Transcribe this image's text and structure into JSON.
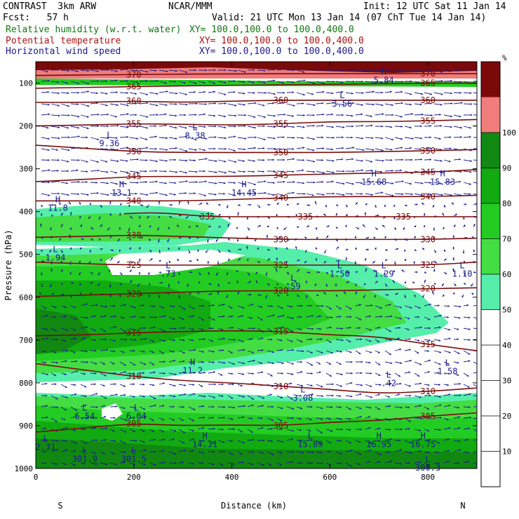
{
  "header": {
    "model": "CONTRAST  3km ARW",
    "fcst": "Fcst:   57 h",
    "org": "NCAR/MMM",
    "init": "Init: 12 UTC Sat 11 Jan 14",
    "valid": "Valid: 21 UTC Mon 13 Jan 14 (07 ChT Tue 14 Jan 14)",
    "fields": [
      {
        "name": "Relative humidity (w.r.t. water)",
        "xy": "XY= 100.0,100.0 to 100.0,400.0",
        "color": "#117711"
      },
      {
        "name": "Potential temperature",
        "xy": "XY= 100.0,100.0 to 100.0,400.0",
        "color": "#aa1111"
      },
      {
        "name": "Horizontal wind speed",
        "xy": "XY= 100.0,100.0 to 100.0,400.0",
        "color": "#1a1a8c"
      }
    ]
  },
  "chart_data": {
    "type": "contour-cross-section",
    "xlabel": "Distance (km)",
    "ylabel": "Pressure (hPa)",
    "xlim": [
      0,
      900
    ],
    "ylim": [
      1000,
      50
    ],
    "x_ticks": [
      "0",
      "200",
      "400",
      "600",
      "800"
    ],
    "y_ticks": [
      "100",
      "200",
      "300",
      "400",
      "500",
      "600",
      "700",
      "800",
      "900",
      "1000"
    ],
    "end_labels": {
      "left": "S",
      "right": "N"
    },
    "colorbar": {
      "unit": "%",
      "ticks": [
        "10",
        "20",
        "30",
        "40",
        "50",
        "60",
        "70",
        "80",
        "90",
        "100"
      ],
      "bins": [
        {
          "range": [
            50,
            60
          ],
          "color": "#55eeaa"
        },
        {
          "range": [
            60,
            70
          ],
          "color": "#44dd44"
        },
        {
          "range": [
            70,
            80
          ],
          "color": "#22cc22"
        },
        {
          "range": [
            80,
            90
          ],
          "color": "#11aa11"
        },
        {
          "range": [
            90,
            100
          ],
          "color": "#118811"
        },
        {
          "range": [
            100,
            110
          ],
          "color": "#f07c7c"
        },
        {
          "range": [
            110,
            120
          ],
          "color": "#7a0a0a"
        }
      ]
    },
    "theta_contours": [
      {
        "value": 305,
        "points": [
          [
            0,
            915
          ],
          [
            100,
            905
          ],
          [
            200,
            895
          ],
          [
            300,
            900
          ],
          [
            400,
            898
          ],
          [
            500,
            900
          ],
          [
            600,
            892
          ],
          [
            700,
            888
          ],
          [
            800,
            878
          ],
          [
            900,
            870
          ]
        ]
      },
      {
        "value": 310,
        "points": [
          [
            0,
            755
          ],
          [
            100,
            770
          ],
          [
            200,
            785
          ],
          [
            300,
            795
          ],
          [
            400,
            800
          ],
          [
            500,
            808
          ],
          [
            600,
            815
          ],
          [
            700,
            825
          ],
          [
            800,
            820
          ],
          [
            900,
            812
          ]
        ]
      },
      {
        "value": 315,
        "points": [
          [
            0,
            690
          ],
          [
            100,
            688
          ],
          [
            200,
            683
          ],
          [
            300,
            680
          ],
          [
            400,
            678
          ],
          [
            500,
            680
          ],
          [
            600,
            688
          ],
          [
            700,
            692
          ],
          [
            800,
            710
          ],
          [
            900,
            725
          ]
        ]
      },
      {
        "value": 320,
        "points": [
          [
            0,
            598
          ],
          [
            100,
            595
          ],
          [
            200,
            592
          ],
          [
            300,
            588
          ],
          [
            400,
            585
          ],
          [
            500,
            585
          ],
          [
            600,
            585
          ],
          [
            700,
            583
          ],
          [
            800,
            580
          ],
          [
            900,
            578
          ]
        ]
      },
      {
        "value": 325,
        "points": [
          [
            0,
            518
          ],
          [
            100,
            522
          ],
          [
            200,
            525
          ],
          [
            300,
            525
          ],
          [
            400,
            525
          ],
          [
            500,
            525
          ],
          [
            600,
            525
          ],
          [
            700,
            525
          ],
          [
            800,
            525
          ],
          [
            900,
            518
          ]
        ]
      },
      {
        "value": 330,
        "points": [
          [
            0,
            460
          ],
          [
            100,
            458
          ],
          [
            200,
            455
          ],
          [
            300,
            458
          ],
          [
            400,
            462
          ],
          [
            500,
            465
          ],
          [
            600,
            465
          ],
          [
            700,
            465
          ],
          [
            800,
            465
          ],
          [
            900,
            462
          ]
        ]
      },
      {
        "value": 335,
        "points": [
          [
            180,
            405
          ],
          [
            250,
            402
          ],
          [
            350,
            412
          ],
          [
            450,
            412
          ],
          [
            550,
            412
          ],
          [
            650,
            412
          ],
          [
            750,
            412
          ],
          [
            900,
            412
          ]
        ]
      },
      {
        "value": 340,
        "points": [
          [
            0,
            375
          ],
          [
            100,
            375
          ],
          [
            200,
            375
          ],
          [
            300,
            375
          ],
          [
            400,
            372
          ],
          [
            500,
            368
          ],
          [
            600,
            365
          ],
          [
            700,
            365
          ],
          [
            800,
            365
          ],
          [
            900,
            362
          ]
        ]
      },
      {
        "value": 345,
        "points": [
          [
            0,
            330
          ],
          [
            100,
            325
          ],
          [
            200,
            318
          ],
          [
            300,
            318
          ],
          [
            400,
            318
          ],
          [
            500,
            315
          ],
          [
            600,
            312
          ],
          [
            700,
            310
          ],
          [
            800,
            308
          ],
          [
            900,
            302
          ]
        ]
      },
      {
        "value": 350,
        "points": [
          [
            0,
            245
          ],
          [
            100,
            252
          ],
          [
            200,
            260
          ],
          [
            300,
            262
          ],
          [
            400,
            262
          ],
          [
            500,
            262
          ],
          [
            600,
            262
          ],
          [
            700,
            260
          ],
          [
            800,
            258
          ],
          [
            900,
            255
          ]
        ]
      },
      {
        "value": 355,
        "points": [
          [
            0,
            200
          ],
          [
            100,
            198
          ],
          [
            200,
            195
          ],
          [
            300,
            196
          ],
          [
            400,
            198
          ],
          [
            500,
            195
          ],
          [
            600,
            190
          ],
          [
            700,
            190
          ],
          [
            800,
            188
          ],
          [
            900,
            185
          ]
        ]
      },
      {
        "value": 360,
        "points": [
          [
            0,
            145
          ],
          [
            100,
            145
          ],
          [
            200,
            142
          ],
          [
            300,
            145
          ],
          [
            400,
            142
          ],
          [
            500,
            140
          ],
          [
            600,
            140
          ],
          [
            700,
            140
          ],
          [
            800,
            140
          ],
          [
            900,
            140
          ]
        ]
      },
      {
        "value": 365,
        "points": [
          [
            0,
            112
          ],
          [
            200,
            108
          ],
          [
            400,
            105
          ],
          [
            600,
            103
          ],
          [
            800,
            100
          ],
          [
            900,
            100
          ]
        ]
      },
      {
        "value": 370,
        "points": [
          [
            0,
            82
          ],
          [
            200,
            80
          ],
          [
            400,
            78
          ],
          [
            600,
            78
          ],
          [
            800,
            78
          ],
          [
            900,
            78
          ]
        ]
      }
    ],
    "extrema": [
      {
        "type": "L",
        "value": "9.36",
        "x": 150,
        "p": 228
      },
      {
        "type": "L",
        "value": "8.38",
        "x": 325,
        "p": 210
      },
      {
        "type": "L",
        "value": "3.56",
        "x": 625,
        "p": 135
      },
      {
        "type": "H",
        "value": "11.8",
        "x": 45,
        "p": 378
      },
      {
        "type": "H",
        "value": "13.1",
        "x": 175,
        "p": 343
      },
      {
        "type": "H",
        "value": "14.45",
        "x": 425,
        "p": 343
      },
      {
        "type": "H",
        "value": "15.68",
        "x": 690,
        "p": 318
      },
      {
        "type": "H",
        "value": "15.83",
        "x": 830,
        "p": 318
      },
      {
        "type": "L",
        "value": "1.94",
        "x": 40,
        "p": 495
      },
      {
        "type": "L",
        "value": ".73",
        "x": 270,
        "p": 532
      },
      {
        "type": "L",
        "value": ".59",
        "x": 525,
        "p": 562
      },
      {
        "type": "L",
        "value": "1.50",
        "x": 620,
        "p": 532
      },
      {
        "type": "L",
        "value": "1.29",
        "x": 710,
        "p": 532
      },
      {
        "type": "L",
        "value": "1.10",
        "x": 870,
        "p": 532
      },
      {
        "type": "H",
        "value": "11.2",
        "x": 320,
        "p": 758
      },
      {
        "type": "L",
        "value": "1.58",
        "x": 840,
        "p": 760
      },
      {
        "type": "L",
        "value": ".42",
        "x": 720,
        "p": 788
      },
      {
        "type": "L",
        "value": "3.08",
        "x": 545,
        "p": 822
      },
      {
        "type": "L",
        "value": "6.54",
        "x": 100,
        "p": 865
      },
      {
        "type": "L",
        "value": "6.04",
        "x": 205,
        "p": 865
      },
      {
        "type": "H",
        "value": "14.31",
        "x": 345,
        "p": 930
      },
      {
        "type": "L",
        "value": "15.89",
        "x": 560,
        "p": 930
      },
      {
        "type": "H",
        "value": "16.95",
        "x": 700,
        "p": 930
      },
      {
        "type": "H",
        "value": "16.75",
        "x": 790,
        "p": 930
      },
      {
        "type": "L",
        "value": "2.31",
        "x": 20,
        "p": 937
      },
      {
        "type": "L",
        "value": "301.9",
        "x": 100,
        "p": 965
      },
      {
        "type": "L",
        "value": "301.5",
        "x": 200,
        "p": 965
      },
      {
        "type": "L",
        "value": "300.3",
        "x": 800,
        "p": 985
      },
      {
        "type": "H",
        "value": "5.84",
        "x": 710,
        "p": 80
      }
    ]
  }
}
